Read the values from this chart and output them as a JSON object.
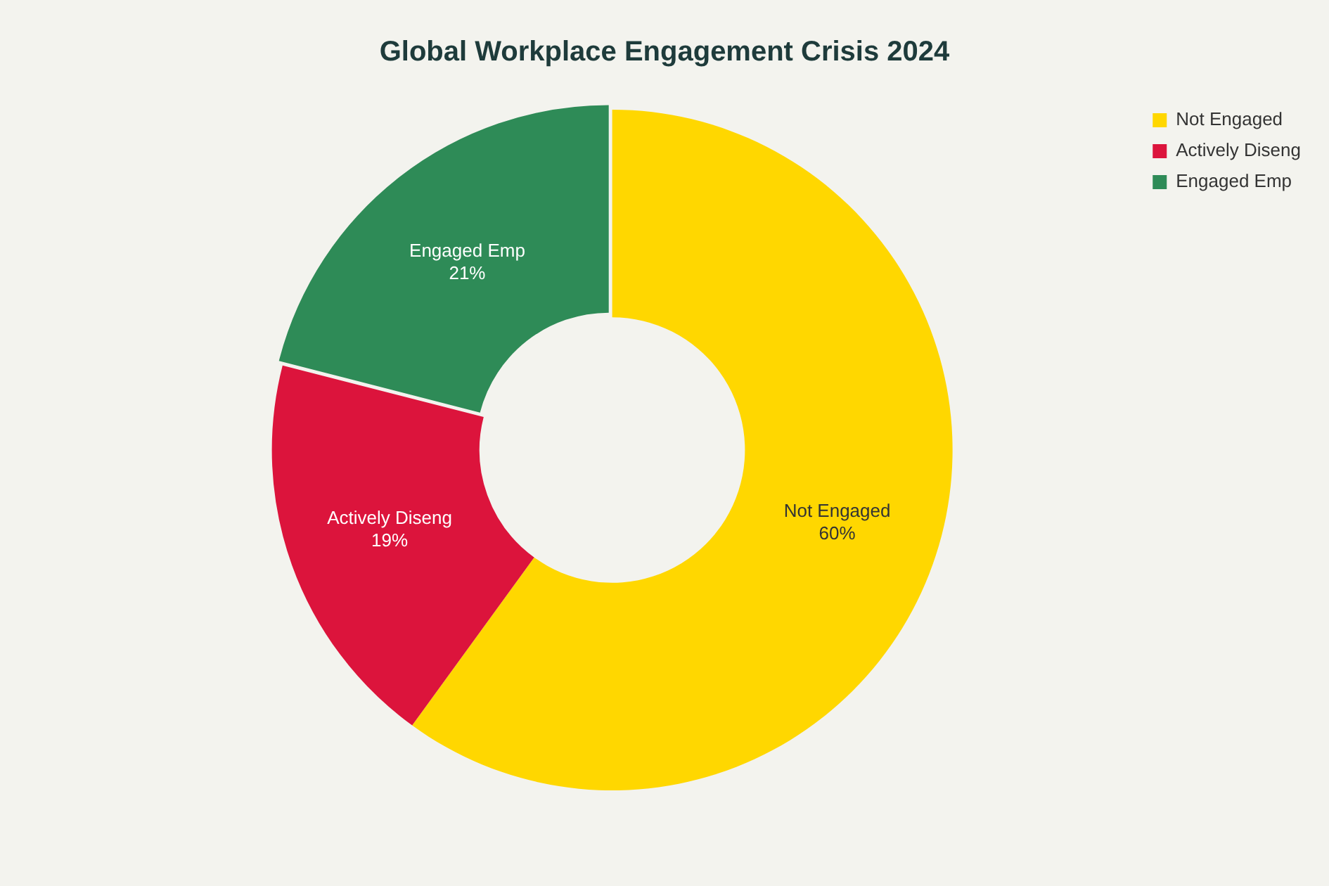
{
  "chart_data": {
    "type": "donut",
    "title": "Global Workplace Engagement Crisis 2024",
    "categories": [
      "Not Engaged",
      "Actively Diseng",
      "Engaged Emp"
    ],
    "values": [
      60,
      19,
      21
    ],
    "colors": [
      "#ffd700",
      "#dc143c",
      "#2e8b57"
    ],
    "value_labels": [
      "60%",
      "19%",
      "21%"
    ],
    "legend": "top right"
  }
}
